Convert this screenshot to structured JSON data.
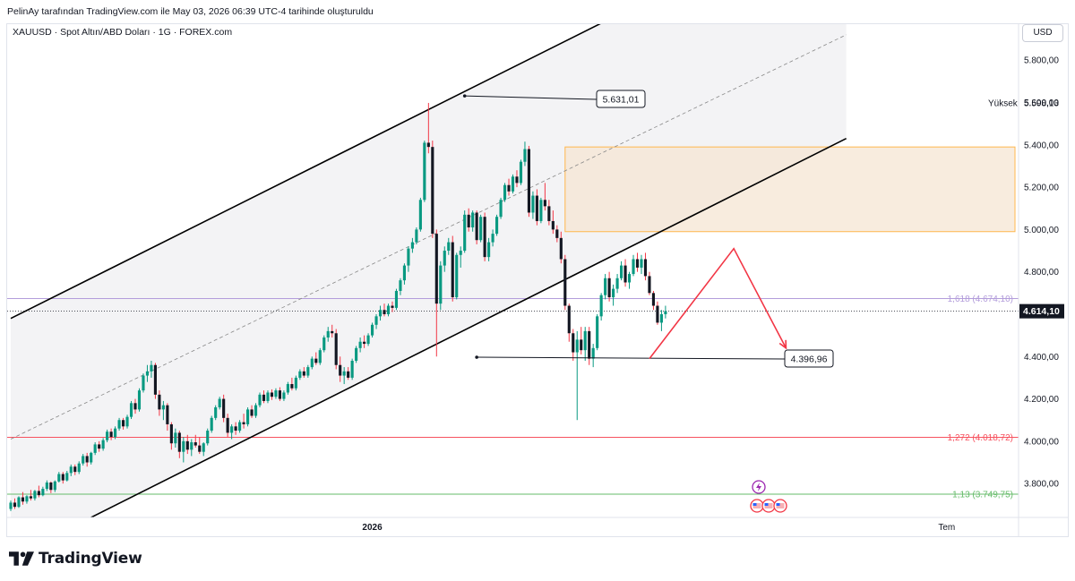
{
  "header": {
    "attribution": "PelinAy tarafından TradingView.com ile May 03, 2026 06:39 UTC-4 tarihinde oluşturuldu"
  },
  "symbol": {
    "title": "XAUUSD · Spot Altın/ABD Doları · 1G · FOREX.com"
  },
  "currency": "USD",
  "brand": {
    "name": "TradingView"
  },
  "colors": {
    "up": "#089981",
    "down": "#131722",
    "fib_1618": "#b39ddb",
    "fib_1272": "#f7525f",
    "fib_113": "#66bb6a",
    "zone": "#f5e6d3",
    "zone_border": "#ffb74d",
    "arrow": "#f23645"
  },
  "chart_data": {
    "type": "candlestick",
    "title": "XAUUSD · Spot Altın/ABD Doları · 1G · FOREX.com",
    "y_axis": {
      "ticks": [
        "3.800,00",
        "4.000,00",
        "4.200,00",
        "4.400,00",
        "4.600,00",
        "4.800,00",
        "5.000,00",
        "5.200,00",
        "5.400,00",
        "5.600,00",
        "5.800,00"
      ],
      "tick_values": [
        3800,
        4000,
        4200,
        4400,
        4600,
        4800,
        5000,
        5200,
        5400,
        5600,
        5800
      ],
      "range": [
        3640,
        5970
      ]
    },
    "x_axis": {
      "labels": [
        {
          "text": "2026",
          "index": 90
        },
        {
          "text": "Tem",
          "index": 233
        }
      ],
      "range": [
        0,
        250
      ]
    },
    "last_price": {
      "label": "4.614,10",
      "value": 4614.1
    },
    "high": {
      "label": "Yüksek",
      "value_label": "5.598,13",
      "value": 5598.13
    },
    "fib_levels": [
      {
        "label": "1,618 (4.674,10)",
        "value": 4674.1,
        "color": "#b39ddb"
      },
      {
        "label": "1,272 (4.018,72)",
        "value": 4018.72,
        "color": "#f7525f"
      },
      {
        "label": "1,13 (3.749,75)",
        "value": 3749.75,
        "color": "#66bb6a"
      }
    ],
    "callouts": [
      {
        "text": "5.631,01",
        "value": 5631.01,
        "index": 113
      },
      {
        "text": "4.396,96",
        "value": 4396.96,
        "index": 116
      }
    ],
    "channel": {
      "upper": [
        [
          0,
          4580
        ],
        [
          156,
          6060
        ]
      ],
      "lower": [
        [
          20,
          3640
        ],
        [
          208,
          5430
        ]
      ],
      "mid_dashed": [
        [
          0,
          4010
        ],
        [
          208,
          5920
        ]
      ]
    },
    "supply_zone": {
      "x_start": 138,
      "x_end": 250,
      "y_low": 4990,
      "y_high": 5390
    },
    "projection": [
      [
        159,
        4390
      ],
      [
        180,
        4910
      ],
      [
        193,
        4440
      ]
    ],
    "candles": [
      [
        0,
        3680,
        3720,
        3670,
        3710
      ],
      [
        1,
        3710,
        3730,
        3680,
        3690
      ],
      [
        2,
        3690,
        3740,
        3685,
        3735
      ],
      [
        3,
        3735,
        3760,
        3700,
        3715
      ],
      [
        4,
        3715,
        3745,
        3705,
        3740
      ],
      [
        5,
        3740,
        3770,
        3720,
        3730
      ],
      [
        6,
        3730,
        3770,
        3720,
        3765
      ],
      [
        7,
        3765,
        3790,
        3735,
        3745
      ],
      [
        8,
        3745,
        3785,
        3740,
        3775
      ],
      [
        9,
        3775,
        3815,
        3765,
        3805
      ],
      [
        10,
        3805,
        3810,
        3755,
        3770
      ],
      [
        11,
        3770,
        3815,
        3760,
        3810
      ],
      [
        12,
        3810,
        3855,
        3805,
        3845
      ],
      [
        13,
        3845,
        3855,
        3800,
        3815
      ],
      [
        14,
        3815,
        3860,
        3810,
        3850
      ],
      [
        15,
        3850,
        3890,
        3835,
        3880
      ],
      [
        16,
        3880,
        3890,
        3840,
        3855
      ],
      [
        17,
        3855,
        3905,
        3845,
        3895
      ],
      [
        18,
        3895,
        3940,
        3885,
        3930
      ],
      [
        19,
        3930,
        3945,
        3880,
        3900
      ],
      [
        20,
        3900,
        3950,
        3890,
        3945
      ],
      [
        21,
        3945,
        3995,
        3935,
        3985
      ],
      [
        22,
        3985,
        4000,
        3950,
        3965
      ],
      [
        23,
        3965,
        4015,
        3955,
        4005
      ],
      [
        24,
        4005,
        4055,
        3995,
        4045
      ],
      [
        25,
        4045,
        4060,
        4005,
        4020
      ],
      [
        26,
        4020,
        4070,
        4010,
        4060
      ],
      [
        27,
        4060,
        4110,
        4050,
        4100
      ],
      [
        28,
        4100,
        4110,
        4055,
        4070
      ],
      [
        29,
        4070,
        4125,
        4060,
        4115
      ],
      [
        30,
        4115,
        4190,
        4105,
        4180
      ],
      [
        31,
        4180,
        4200,
        4130,
        4150
      ],
      [
        32,
        4150,
        4250,
        4140,
        4240
      ],
      [
        33,
        4240,
        4320,
        4230,
        4310
      ],
      [
        34,
        4310,
        4360,
        4280,
        4330
      ],
      [
        35,
        4330,
        4380,
        4300,
        4360
      ],
      [
        36,
        4360,
        4370,
        4200,
        4220
      ],
      [
        37,
        4220,
        4240,
        4120,
        4150
      ],
      [
        38,
        4150,
        4190,
        4100,
        4170
      ],
      [
        39,
        4170,
        4180,
        4050,
        4080
      ],
      [
        40,
        4080,
        4090,
        3960,
        3990
      ],
      [
        41,
        3990,
        4060,
        3970,
        4040
      ],
      [
        42,
        4040,
        4050,
        3920,
        3950
      ],
      [
        43,
        3950,
        4020,
        3900,
        4000
      ],
      [
        44,
        4000,
        4030,
        3940,
        3960
      ],
      [
        45,
        3960,
        4010,
        3930,
        3995
      ],
      [
        46,
        3995,
        4030,
        3970,
        3980
      ],
      [
        47,
        3980,
        4020,
        3940,
        3950
      ],
      [
        48,
        3950,
        3995,
        3930,
        3990
      ],
      [
        49,
        3990,
        4060,
        3980,
        4050
      ],
      [
        50,
        4050,
        4120,
        4040,
        4110
      ],
      [
        51,
        4110,
        4170,
        4100,
        4160
      ],
      [
        52,
        4160,
        4210,
        4150,
        4200
      ],
      [
        53,
        4200,
        4220,
        4090,
        4110
      ],
      [
        54,
        4110,
        4130,
        4020,
        4040
      ],
      [
        55,
        4040,
        4080,
        4010,
        4070
      ],
      [
        56,
        4070,
        4090,
        4030,
        4050
      ],
      [
        57,
        4050,
        4100,
        4040,
        4090
      ],
      [
        58,
        4090,
        4130,
        4060,
        4080
      ],
      [
        59,
        4080,
        4160,
        4070,
        4150
      ],
      [
        60,
        4150,
        4170,
        4110,
        4120
      ],
      [
        61,
        4120,
        4180,
        4110,
        4170
      ],
      [
        62,
        4170,
        4230,
        4160,
        4220
      ],
      [
        63,
        4220,
        4240,
        4180,
        4190
      ],
      [
        64,
        4190,
        4240,
        4180,
        4230
      ],
      [
        65,
        4230,
        4245,
        4195,
        4210
      ],
      [
        66,
        4210,
        4250,
        4200,
        4240
      ],
      [
        67,
        4240,
        4255,
        4190,
        4200
      ],
      [
        68,
        4200,
        4240,
        4190,
        4230
      ],
      [
        69,
        4230,
        4280,
        4220,
        4270
      ],
      [
        70,
        4270,
        4300,
        4240,
        4250
      ],
      [
        71,
        4250,
        4310,
        4240,
        4300
      ],
      [
        72,
        4300,
        4340,
        4290,
        4330
      ],
      [
        73,
        4330,
        4350,
        4300,
        4310
      ],
      [
        74,
        4310,
        4360,
        4300,
        4350
      ],
      [
        75,
        4350,
        4400,
        4340,
        4390
      ],
      [
        76,
        4390,
        4420,
        4360,
        4370
      ],
      [
        77,
        4370,
        4440,
        4360,
        4430
      ],
      [
        78,
        4430,
        4500,
        4420,
        4490
      ],
      [
        79,
        4490,
        4540,
        4470,
        4520
      ],
      [
        80,
        4520,
        4550,
        4490,
        4510
      ],
      [
        81,
        4510,
        4530,
        4340,
        4360
      ],
      [
        82,
        4360,
        4400,
        4280,
        4310
      ],
      [
        83,
        4310,
        4350,
        4270,
        4330
      ],
      [
        84,
        4330,
        4350,
        4290,
        4300
      ],
      [
        85,
        4300,
        4390,
        4290,
        4380
      ],
      [
        86,
        4380,
        4450,
        4370,
        4440
      ],
      [
        87,
        4440,
        4490,
        4420,
        4470
      ],
      [
        88,
        4470,
        4500,
        4440,
        4460
      ],
      [
        89,
        4460,
        4510,
        4450,
        4500
      ],
      [
        90,
        4500,
        4560,
        4490,
        4550
      ],
      [
        91,
        4550,
        4600,
        4530,
        4590
      ],
      [
        92,
        4590,
        4640,
        4570,
        4620
      ],
      [
        93,
        4620,
        4650,
        4590,
        4600
      ],
      [
        94,
        4600,
        4650,
        4590,
        4640
      ],
      [
        95,
        4640,
        4660,
        4610,
        4630
      ],
      [
        96,
        4630,
        4720,
        4620,
        4710
      ],
      [
        97,
        4710,
        4770,
        4690,
        4760
      ],
      [
        98,
        4760,
        4840,
        4740,
        4830
      ],
      [
        99,
        4830,
        4920,
        4800,
        4910
      ],
      [
        100,
        4910,
        4960,
        4890,
        4940
      ],
      [
        101,
        4940,
        5010,
        4930,
        5000
      ],
      [
        102,
        5000,
        5150,
        4990,
        5140
      ],
      [
        103,
        5140,
        5420,
        5130,
        5410
      ],
      [
        104,
        5410,
        5598,
        5360,
        5390
      ],
      [
        105,
        5390,
        5420,
        4960,
        4980
      ],
      [
        106,
        4980,
        5000,
        4400,
        4650
      ],
      [
        107,
        4650,
        4850,
        4620,
        4830
      ],
      [
        108,
        4830,
        4920,
        4800,
        4900
      ],
      [
        109,
        4900,
        4960,
        4880,
        4940
      ],
      [
        110,
        4940,
        4970,
        4660,
        4680
      ],
      [
        111,
        4680,
        4890,
        4670,
        4880
      ],
      [
        112,
        4880,
        4920,
        4820,
        4900
      ],
      [
        113,
        4900,
        5090,
        4890,
        5070
      ],
      [
        114,
        5070,
        5100,
        4990,
        5010
      ],
      [
        115,
        5010,
        5090,
        4990,
        5080
      ],
      [
        116,
        5080,
        5090,
        4930,
        4950
      ],
      [
        117,
        4950,
        5070,
        4940,
        5060
      ],
      [
        118,
        5060,
        5080,
        4850,
        4870
      ],
      [
        119,
        4870,
        4960,
        4850,
        4940
      ],
      [
        120,
        4940,
        5000,
        4920,
        4980
      ],
      [
        121,
        4980,
        5070,
        4970,
        5060
      ],
      [
        122,
        5060,
        5150,
        5050,
        5140
      ],
      [
        123,
        5140,
        5220,
        5130,
        5210
      ],
      [
        124,
        5210,
        5240,
        5160,
        5180
      ],
      [
        125,
        5180,
        5260,
        5170,
        5250
      ],
      [
        126,
        5250,
        5280,
        5200,
        5220
      ],
      [
        127,
        5220,
        5330,
        5210,
        5320
      ],
      [
        128,
        5320,
        5415,
        5300,
        5380
      ],
      [
        129,
        5380,
        5395,
        5060,
        5080
      ],
      [
        130,
        5080,
        5180,
        5050,
        5160
      ],
      [
        131,
        5160,
        5190,
        5020,
        5040
      ],
      [
        132,
        5040,
        5150,
        5030,
        5140
      ],
      [
        133,
        5140,
        5220,
        5090,
        5110
      ],
      [
        134,
        5110,
        5140,
        5020,
        5040
      ],
      [
        135,
        5040,
        5090,
        4980,
        5000
      ],
      [
        136,
        5000,
        5020,
        4940,
        4960
      ],
      [
        137,
        4960,
        4990,
        4840,
        4860
      ],
      [
        138,
        4860,
        4880,
        4620,
        4640
      ],
      [
        139,
        4640,
        4650,
        4470,
        4510
      ],
      [
        140,
        4510,
        4530,
        4380,
        4420
      ],
      [
        141,
        4420,
        4520,
        4100,
        4480
      ],
      [
        142,
        4480,
        4540,
        4410,
        4430
      ],
      [
        143,
        4430,
        4540,
        4380,
        4520
      ],
      [
        144,
        4520,
        4540,
        4360,
        4390
      ],
      [
        145,
        4390,
        4460,
        4350,
        4440
      ],
      [
        146,
        4440,
        4600,
        4430,
        4590
      ],
      [
        147,
        4590,
        4700,
        4570,
        4690
      ],
      [
        148,
        4690,
        4790,
        4670,
        4770
      ],
      [
        149,
        4770,
        4800,
        4660,
        4680
      ],
      [
        150,
        4680,
        4740,
        4640,
        4720
      ],
      [
        151,
        4720,
        4790,
        4700,
        4770
      ],
      [
        152,
        4770,
        4850,
        4760,
        4830
      ],
      [
        153,
        4830,
        4860,
        4730,
        4750
      ],
      [
        154,
        4750,
        4800,
        4720,
        4790
      ],
      [
        155,
        4790,
        4880,
        4780,
        4860
      ],
      [
        156,
        4860,
        4890,
        4800,
        4820
      ],
      [
        157,
        4820,
        4880,
        4790,
        4860
      ],
      [
        158,
        4860,
        4890,
        4760,
        4780
      ],
      [
        159,
        4780,
        4800,
        4690,
        4700
      ],
      [
        160,
        4700,
        4710,
        4620,
        4640
      ],
      [
        161,
        4640,
        4660,
        4550,
        4560
      ],
      [
        162,
        4560,
        4620,
        4520,
        4600
      ],
      [
        163,
        4600,
        4640,
        4580,
        4614
      ]
    ]
  }
}
